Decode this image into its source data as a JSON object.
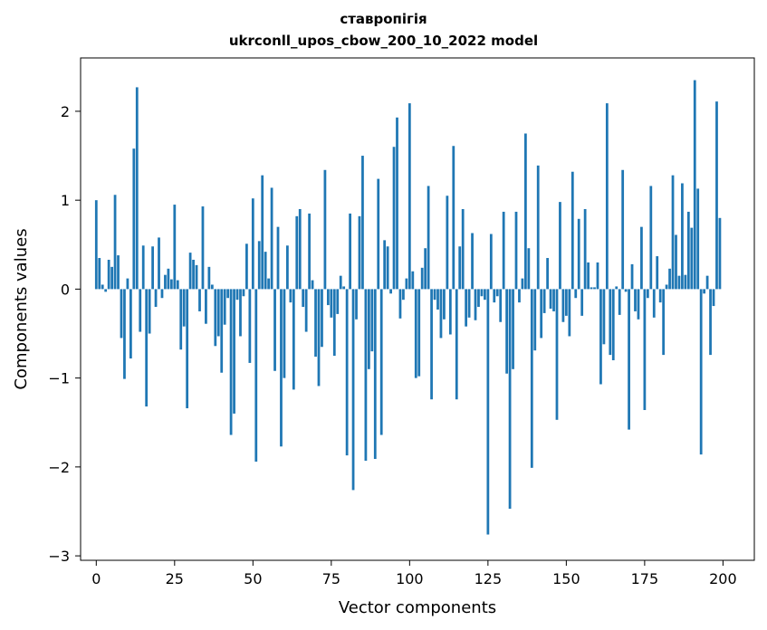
{
  "chart_data": {
    "type": "bar",
    "title": "ставропігія",
    "subtitle": "ukrconll_upos_cbow_200_10_2022 model",
    "xlabel": "Vector components",
    "ylabel": "Components values",
    "xlim": [
      -5,
      210
    ],
    "ylim": [
      -3.05,
      2.6
    ],
    "xticks": [
      0,
      25,
      50,
      75,
      100,
      125,
      150,
      175,
      200
    ],
    "yticks": [
      -3,
      -2,
      -1,
      0,
      1,
      2
    ],
    "ytick_labels": [
      "−3",
      "−2",
      "−1",
      "0",
      "1",
      "2"
    ],
    "grid": false,
    "bar_color": "#1f77b4",
    "values": [
      1.0,
      0.35,
      0.05,
      -0.03,
      0.33,
      0.25,
      1.06,
      0.38,
      -0.55,
      -1.01,
      0.12,
      -0.78,
      1.58,
      2.27,
      -0.48,
      0.49,
      -1.32,
      -0.5,
      0.48,
      -0.2,
      0.58,
      -0.1,
      0.16,
      0.23,
      0.11,
      0.95,
      0.1,
      -0.68,
      -0.42,
      -1.34,
      0.41,
      0.33,
      0.27,
      -0.25,
      0.93,
      -0.39,
      0.25,
      0.05,
      -0.64,
      -0.53,
      -0.94,
      -0.4,
      -0.1,
      -1.64,
      -1.4,
      -0.12,
      -0.53,
      -0.08,
      0.51,
      -0.83,
      1.02,
      -1.94,
      0.54,
      1.28,
      0.42,
      0.12,
      1.14,
      -0.92,
      0.7,
      -1.77,
      -1.0,
      0.49,
      -0.15,
      -1.13,
      0.82,
      0.9,
      -0.2,
      -0.48,
      0.85,
      0.1,
      -0.76,
      -1.09,
      -0.65,
      1.34,
      -0.18,
      -0.32,
      -0.75,
      -0.28,
      0.15,
      0.03,
      -1.87,
      0.85,
      -2.26,
      -0.34,
      0.82,
      1.5,
      -1.93,
      -0.9,
      -0.7,
      -1.91,
      1.24,
      -1.64,
      0.55,
      0.48,
      -0.05,
      1.6,
      1.93,
      -0.33,
      -0.12,
      0.12,
      2.09,
      0.2,
      -1.0,
      -0.98,
      0.24,
      0.46,
      1.16,
      -1.24,
      -0.12,
      -0.23,
      -0.55,
      -0.34,
      1.05,
      -0.51,
      1.61,
      -1.24,
      0.48,
      0.9,
      -0.42,
      -0.32,
      0.63,
      -0.35,
      -0.2,
      -0.08,
      -0.12,
      -2.76,
      0.62,
      -0.15,
      -0.08,
      -0.37,
      0.87,
      -0.95,
      -2.47,
      -0.9,
      0.87,
      -0.15,
      0.12,
      1.75,
      0.46,
      -2.01,
      -0.69,
      1.39,
      -0.55,
      -0.27,
      0.35,
      -0.22,
      -0.25,
      -1.47,
      0.98,
      -0.37,
      -0.3,
      -0.53,
      1.32,
      -0.1,
      0.79,
      -0.3,
      0.9,
      0.3,
      0.02,
      0.02,
      0.3,
      -1.07,
      -0.62,
      2.09,
      -0.74,
      -0.8,
      0.03,
      -0.29,
      1.34,
      -0.03,
      -1.58,
      0.28,
      -0.25,
      -0.34,
      0.7,
      -1.36,
      -0.1,
      1.16,
      -0.32,
      0.37,
      -0.15,
      -0.74,
      0.05,
      0.23,
      1.28,
      0.61,
      0.15,
      1.19,
      0.16,
      0.87,
      0.69,
      2.35,
      1.13,
      -1.86,
      -0.05,
      0.15,
      -0.74,
      -0.19,
      2.11,
      0.8
    ]
  }
}
